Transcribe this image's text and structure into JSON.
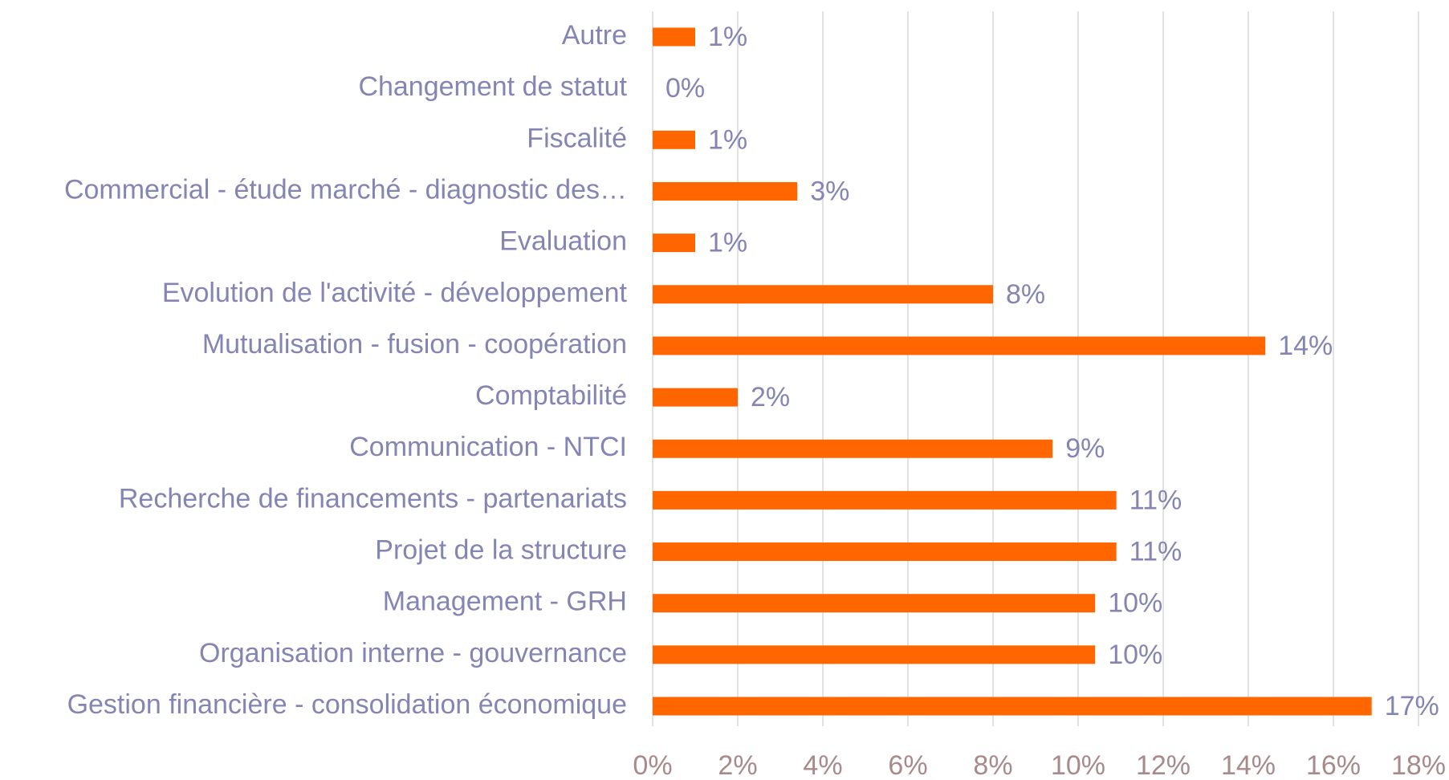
{
  "chart_data": {
    "type": "hbar",
    "categories": [
      "Autre",
      "Changement de statut",
      "Fiscalité",
      "Commercial - étude marché - diagnostic des…",
      "Evaluation",
      "Evolution de l'activité - développement",
      "Mutualisation - fusion - coopération",
      "Comptabilité",
      "Communication - NTCI",
      "Recherche de financements - partenariats",
      "Projet de la structure",
      "Management - GRH",
      "Organisation interne - gouvernance",
      "Gestion financière - consolidation économique"
    ],
    "values": [
      1.0,
      0,
      1.0,
      3.4,
      1.0,
      8.0,
      14.4,
      2.0,
      9.4,
      10.9,
      10.9,
      10.4,
      10.4,
      16.9
    ],
    "value_labels": [
      "1%",
      "0%",
      "1%",
      "3%",
      "1%",
      "8%",
      "14%",
      "2%",
      "9%",
      "11%",
      "11%",
      "10%",
      "10%",
      "17%"
    ],
    "color": "#ff6600",
    "xlim": [
      0,
      18
    ],
    "xticks": [
      {
        "value": 0,
        "label": "0%"
      },
      {
        "value": 2,
        "label": "2%"
      },
      {
        "value": 4,
        "label": "4%"
      },
      {
        "value": 6,
        "label": "6%"
      },
      {
        "value": 8,
        "label": "8%"
      },
      {
        "value": 10,
        "label": "10%"
      },
      {
        "value": 12,
        "label": "12%"
      },
      {
        "value": 14,
        "label": "14%"
      },
      {
        "value": 16,
        "label": "16%"
      },
      {
        "value": 18,
        "label": "18%"
      }
    ],
    "grid": true
  }
}
